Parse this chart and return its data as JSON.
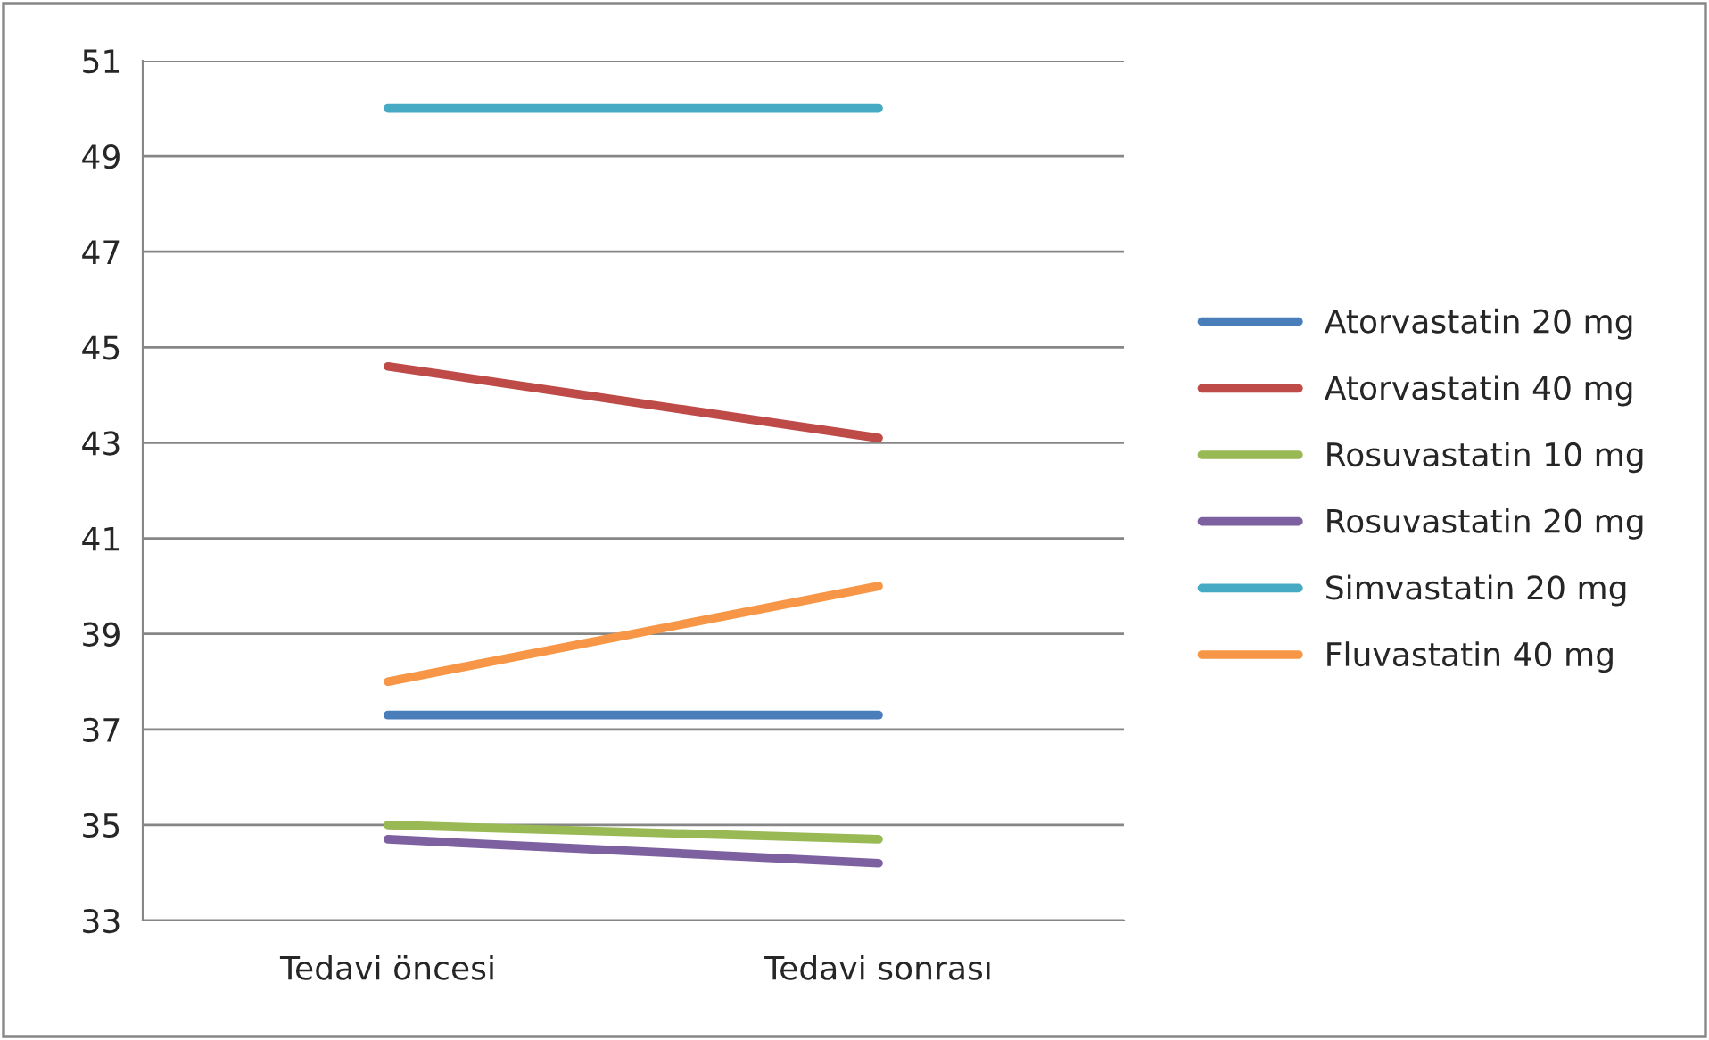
{
  "chart_data": {
    "type": "line",
    "categories": [
      "Tedavi öncesi",
      "Tedavi sonrası"
    ],
    "series": [
      {
        "name": "Atorvastatin 20 mg",
        "color": "#4a7ebb",
        "values": [
          37.3,
          37.3
        ]
      },
      {
        "name": "Atorvastatin 40 mg",
        "color": "#be4b48",
        "values": [
          44.6,
          43.1
        ]
      },
      {
        "name": "Rosuvastatin 10 mg",
        "color": "#98b954",
        "values": [
          35.0,
          34.7
        ]
      },
      {
        "name": "Rosuvastatin 20 mg",
        "color": "#7d60a0",
        "values": [
          34.7,
          34.2
        ]
      },
      {
        "name": "Simvastatin 20 mg",
        "color": "#46aac5",
        "values": [
          50.0,
          50.0
        ]
      },
      {
        "name": "Fluvastatin 40 mg",
        "color": "#f79646",
        "values": [
          38.0,
          40.0
        ]
      }
    ],
    "ylim": [
      33,
      51
    ],
    "yticks": [
      33,
      35,
      37,
      39,
      41,
      43,
      45,
      47,
      49,
      51
    ],
    "grid": "y",
    "legend": "right",
    "marker": "none",
    "line_style": "solid"
  }
}
